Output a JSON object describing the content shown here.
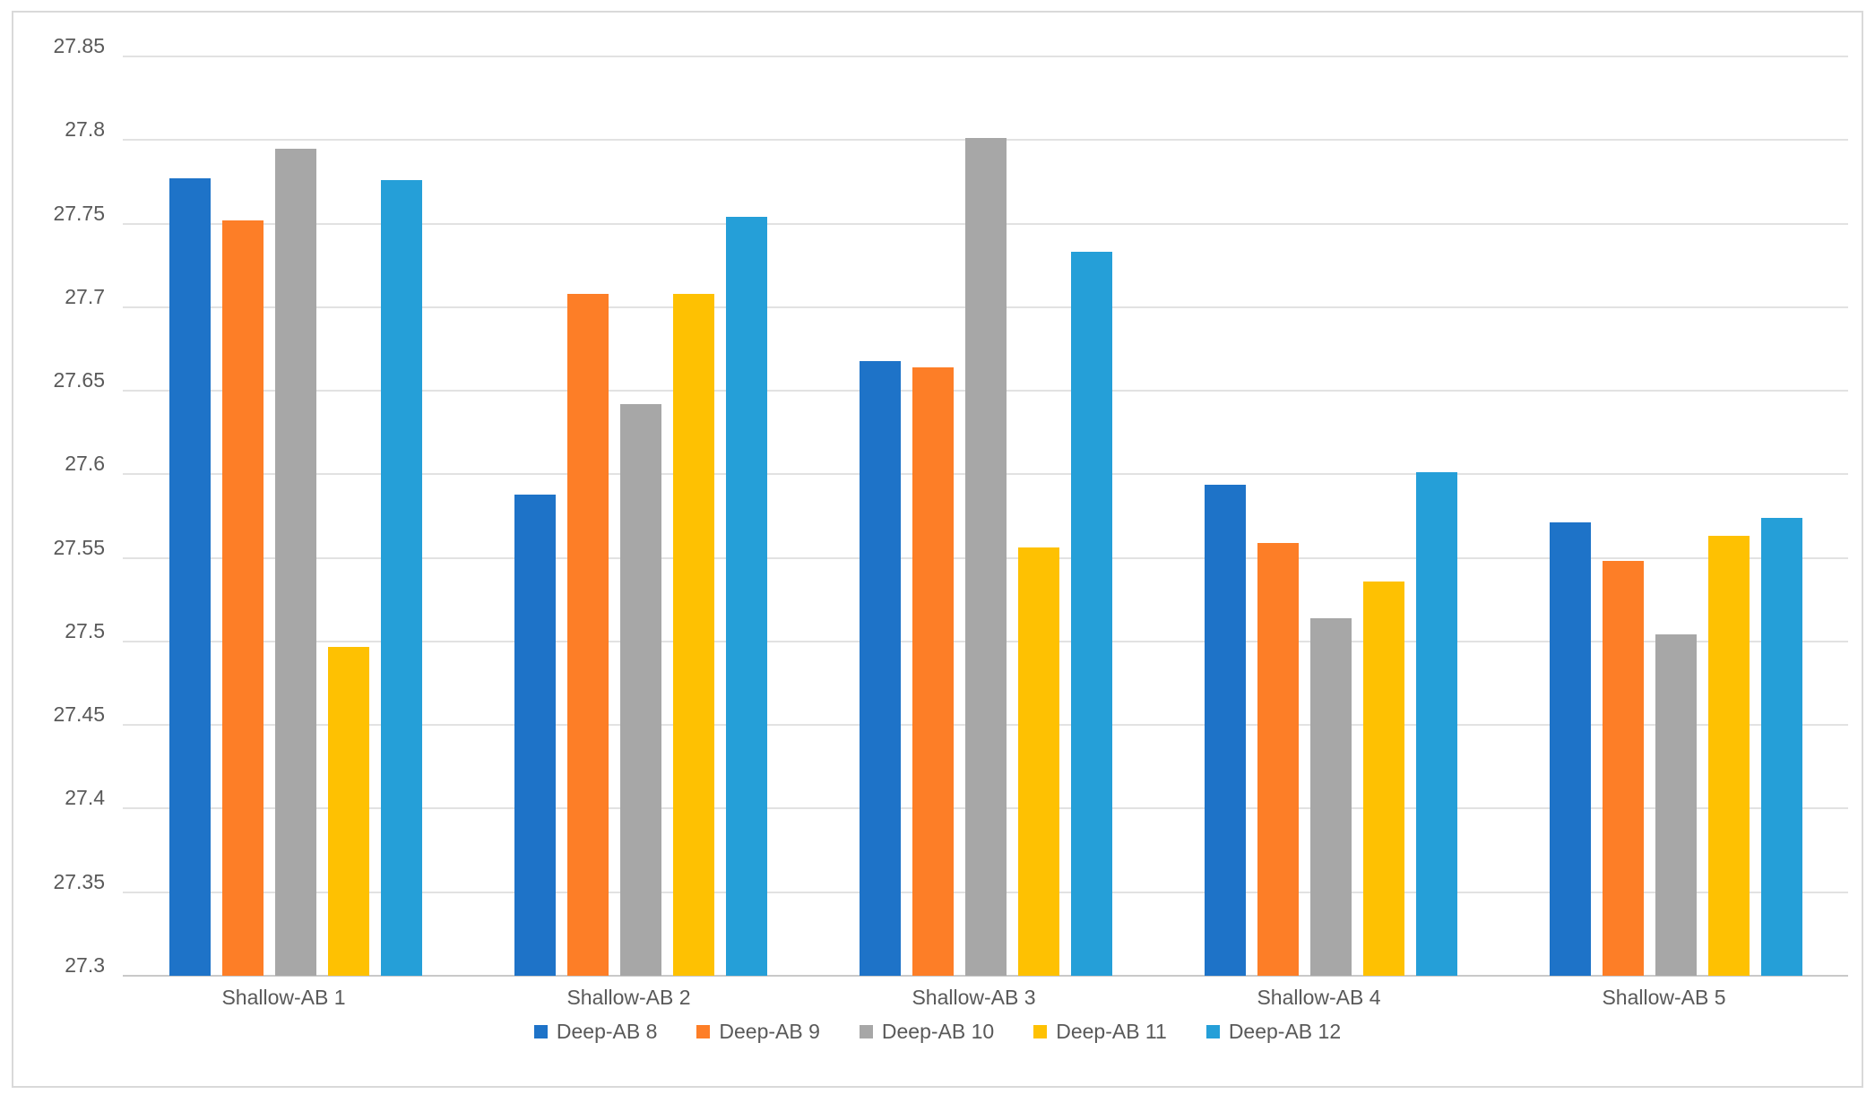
{
  "chart_data": {
    "type": "bar",
    "title": "",
    "xlabel": "",
    "ylabel": "",
    "categories": [
      "Shallow-AB 1",
      "Shallow-AB 2",
      "Shallow-AB 3",
      "Shallow-AB 4",
      "Shallow-AB 5"
    ],
    "series": [
      {
        "name": "Deep-AB 8",
        "color": "#1e73c8",
        "values": [
          27.777,
          27.588,
          27.668,
          27.594,
          27.571
        ]
      },
      {
        "name": "Deep-AB 9",
        "color": "#fd7e27",
        "values": [
          27.752,
          27.708,
          27.664,
          27.559,
          27.548
        ]
      },
      {
        "name": "Deep-AB 10",
        "color": "#a7a7a7",
        "values": [
          27.795,
          27.642,
          27.801,
          27.514,
          27.504
        ]
      },
      {
        "name": "Deep-AB 11",
        "color": "#fec102",
        "values": [
          27.497,
          27.708,
          27.556,
          27.536,
          27.563
        ]
      },
      {
        "name": "Deep-AB 12",
        "color": "#259fd8",
        "values": [
          27.776,
          27.754,
          27.733,
          27.601,
          27.574
        ]
      }
    ],
    "ylim": [
      27.3,
      27.85
    ],
    "y_tick_step": 0.05,
    "y_tick_labels": [
      "27.85",
      "27.8",
      "27.75",
      "27.7",
      "27.65",
      "27.6",
      "27.55",
      "27.5",
      "27.45",
      "27.4",
      "27.35",
      "27.3"
    ],
    "grid": "horizontal",
    "legend_position": "bottom",
    "colors": {
      "gridline": "#e2e2e2",
      "axis_line": "#c9c9c9",
      "tick_text": "#595959",
      "frame_border": "#d9d9d9",
      "background": "#ffffff"
    }
  }
}
